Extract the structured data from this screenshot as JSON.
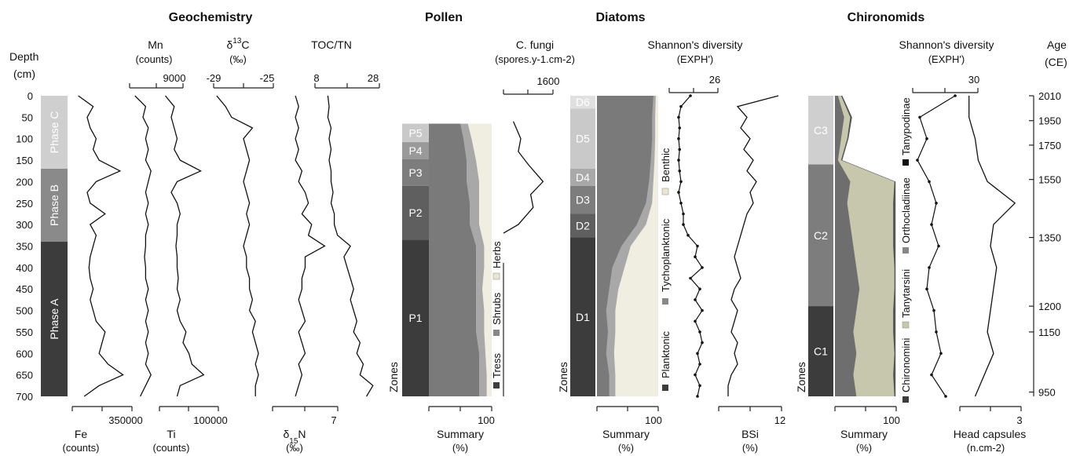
{
  "chart_data": {
    "type": "line",
    "panel_titles": {
      "geochemistry": "Geochemistry",
      "pollen": "Pollen",
      "diatoms": "Diatoms",
      "chironomids": "Chironomids"
    },
    "depth_axis": {
      "label": "Depth",
      "unit": "(cm)",
      "range": [
        0,
        700
      ],
      "ticks": [
        "0",
        "50",
        "100",
        "150",
        "200",
        "250",
        "300",
        "350",
        "400",
        "450",
        "500",
        "550",
        "600",
        "650",
        "700"
      ]
    },
    "age_axis": {
      "label": "Age",
      "unit": "(CE)",
      "ticks": [
        {
          "label": "2010",
          "depth": 0
        },
        {
          "label": "1950",
          "depth": 58
        },
        {
          "label": "1750",
          "depth": 115
        },
        {
          "label": "1550",
          "depth": 195
        },
        {
          "label": "1350",
          "depth": 330
        },
        {
          "label": "1200",
          "depth": 490
        },
        {
          "label": "1150",
          "depth": 550
        },
        {
          "label": "950",
          "depth": 690
        }
      ]
    },
    "phases": [
      {
        "label": "Phase C",
        "top": 0,
        "bottom": 170,
        "color": "#cfcfcf"
      },
      {
        "label": "Phase B",
        "top": 170,
        "bottom": 340,
        "color": "#8a8a8a"
      },
      {
        "label": "Phase A",
        "top": 340,
        "bottom": 700,
        "color": "#3c3c3c"
      }
    ],
    "geo_axes": {
      "mn": {
        "name": "Mn",
        "unit": "(counts)",
        "tick_max": "9000"
      },
      "d13c": {
        "name": "δ13C",
        "name_base": "δ",
        "name_sup": "13",
        "name_tail": "C",
        "unit": "(‰)",
        "tick_min": "-29",
        "tick_max": "-25"
      },
      "tocn": {
        "name": "TOC/TN",
        "tick_min": "8",
        "tick_max": "28"
      },
      "fe": {
        "name": "Fe",
        "unit": "(counts)",
        "tick_max": "350000"
      },
      "ti": {
        "name": "Ti",
        "unit": "(counts)",
        "tick_max": "100000"
      },
      "d15n": {
        "name": "δ15N",
        "name_base": "δ",
        "name_sup": "15",
        "name_tail": "N",
        "unit": "(‰)",
        "tick_max": "7"
      }
    },
    "geochem_depths": [
      0,
      25,
      50,
      75,
      100,
      125,
      150,
      175,
      200,
      225,
      250,
      275,
      300,
      325,
      350,
      375,
      400,
      425,
      450,
      475,
      500,
      525,
      550,
      575,
      600,
      625,
      650,
      675,
      700
    ],
    "fe": [
      0.1,
      0.35,
      0.25,
      0.3,
      0.4,
      0.35,
      0.45,
      0.8,
      0.4,
      0.25,
      0.3,
      0.55,
      0.3,
      0.4,
      0.35,
      0.3,
      0.28,
      0.3,
      0.35,
      0.3,
      0.35,
      0.4,
      0.55,
      0.5,
      0.45,
      0.6,
      0.85,
      0.45,
      0.2
    ],
    "mn": [
      0.1,
      0.3,
      0.25,
      0.35,
      0.3,
      0.35,
      0.3,
      0.4,
      0.35,
      0.3,
      0.35,
      0.3,
      0.35,
      0.3,
      0.3,
      0.28,
      0.3,
      0.3,
      0.35,
      0.3,
      0.35,
      0.3,
      0.35,
      0.3,
      0.35,
      0.3,
      0.4,
      0.3,
      0.2
    ],
    "ti": [
      0.1,
      0.25,
      0.2,
      0.25,
      0.3,
      0.25,
      0.35,
      0.7,
      0.3,
      0.2,
      0.3,
      0.35,
      0.3,
      0.3,
      0.28,
      0.3,
      0.3,
      0.32,
      0.3,
      0.35,
      0.3,
      0.35,
      0.45,
      0.4,
      0.5,
      0.55,
      0.75,
      0.35,
      0.3
    ],
    "d13c": [
      0.05,
      0.2,
      0.3,
      0.65,
      0.5,
      0.55,
      0.6,
      0.55,
      0.5,
      0.55,
      0.6,
      0.55,
      0.6,
      0.55,
      0.5,
      0.55,
      0.55,
      0.6,
      0.6,
      0.65,
      0.6,
      0.7,
      0.65,
      0.7,
      0.75,
      0.7,
      0.75,
      0.7,
      0.7
    ],
    "d15n": [
      0.35,
      0.4,
      0.35,
      0.4,
      0.35,
      0.4,
      0.35,
      0.45,
      0.4,
      0.5,
      0.55,
      0.45,
      0.6,
      0.55,
      0.8,
      0.5,
      0.5,
      0.45,
      0.45,
      0.4,
      0.45,
      0.5,
      0.4,
      0.45,
      0.5,
      0.4,
      0.45,
      0.4,
      0.35
    ],
    "tocn": [
      0.2,
      0.22,
      0.2,
      0.25,
      0.22,
      0.25,
      0.22,
      0.25,
      0.25,
      0.28,
      0.25,
      0.3,
      0.3,
      0.35,
      0.55,
      0.45,
      0.5,
      0.55,
      0.6,
      0.55,
      0.6,
      0.65,
      0.6,
      0.7,
      0.65,
      0.75,
      0.7,
      0.9,
      0.8
    ],
    "pollen": {
      "title": "Pollen",
      "zones": [
        {
          "label": "P5",
          "top": 65,
          "bottom": 108
        },
        {
          "label": "P4",
          "top": 108,
          "bottom": 148
        },
        {
          "label": "P3",
          "top": 148,
          "bottom": 210
        },
        {
          "label": "P2",
          "top": 210,
          "bottom": 335
        },
        {
          "label": "P1",
          "top": 335,
          "bottom": 700
        }
      ],
      "zones_top": 65,
      "summary_label": "Summary",
      "summary_unit": "(%)",
      "summary_max": "100",
      "legend": [
        "Tress",
        "Shrubs",
        "Herbs"
      ],
      "depths": [
        65,
        100,
        150,
        200,
        250,
        300,
        350,
        400,
        450,
        500,
        550,
        600,
        650,
        700
      ],
      "trees": [
        0.5,
        0.55,
        0.6,
        0.6,
        0.65,
        0.65,
        0.75,
        0.75,
        0.75,
        0.75,
        0.75,
        0.8,
        0.8,
        0.8
      ],
      "shrubs": [
        0.62,
        0.68,
        0.75,
        0.8,
        0.8,
        0.8,
        0.88,
        0.88,
        0.85,
        0.88,
        0.88,
        0.9,
        0.92,
        0.92
      ],
      "fungi_label": "C. fungi",
      "fungi_unit": "(spores.y-1.cm-2)",
      "fungi_tick": "1600",
      "fungi_depths": [
        60,
        100,
        130,
        160,
        200,
        230,
        260,
        300,
        320
      ],
      "fungi": [
        0.2,
        0.35,
        0.3,
        0.5,
        0.8,
        0.55,
        0.6,
        0.3,
        0.0
      ]
    },
    "diatoms": {
      "title": "Diatoms",
      "zones": [
        {
          "label": "D6",
          "top": 0,
          "bottom": 30
        },
        {
          "label": "D5",
          "top": 30,
          "bottom": 170
        },
        {
          "label": "D4",
          "top": 170,
          "bottom": 210
        },
        {
          "label": "D3",
          "top": 210,
          "bottom": 275
        },
        {
          "label": "D2",
          "top": 275,
          "bottom": 330
        },
        {
          "label": "D1",
          "top": 330,
          "bottom": 700
        }
      ],
      "summary_label": "Summary",
      "summary_unit": "(%)",
      "summary_max": "100",
      "legend": [
        "Planktonic",
        "Tychoplanktonic",
        "Benthic"
      ],
      "depths": [
        0,
        50,
        100,
        150,
        200,
        250,
        300,
        350,
        400,
        450,
        500,
        550,
        600,
        650,
        700
      ],
      "planktonic": [
        0.92,
        0.9,
        0.9,
        0.88,
        0.85,
        0.8,
        0.65,
        0.4,
        0.25,
        0.2,
        0.15,
        0.18,
        0.15,
        0.2,
        0.2
      ],
      "tycho": [
        0.96,
        0.95,
        0.95,
        0.94,
        0.92,
        0.9,
        0.8,
        0.55,
        0.45,
        0.35,
        0.3,
        0.3,
        0.28,
        0.3,
        0.3
      ],
      "shannon_label": "Shannon's diversity",
      "shannon_unit": "(EXPH')",
      "shannon_tick": "26",
      "shannon_depths": [
        0,
        25,
        50,
        75,
        100,
        125,
        150,
        175,
        200,
        225,
        250,
        275,
        300,
        325,
        350,
        375,
        400,
        425,
        450,
        475,
        500,
        525,
        550,
        575,
        600,
        625,
        650,
        675,
        700
      ],
      "shannon": [
        0.35,
        0.15,
        0.1,
        0.12,
        0.1,
        0.12,
        0.1,
        0.12,
        0.15,
        0.1,
        0.15,
        0.2,
        0.2,
        0.3,
        0.5,
        0.45,
        0.6,
        0.35,
        0.55,
        0.45,
        0.6,
        0.45,
        0.55,
        0.6,
        0.5,
        0.55,
        0.45,
        0.55,
        0.5
      ],
      "bsi_label": "BSi",
      "bsi_unit": "(%)",
      "bsi_tick": "12",
      "bsi_depths": [
        0,
        25,
        50,
        75,
        100,
        125,
        150,
        175,
        200,
        225,
        250,
        275,
        300,
        325,
        350,
        375,
        400,
        425,
        450,
        475,
        500,
        525,
        550,
        575,
        600,
        625,
        650,
        675,
        700
      ],
      "bsi": [
        0.95,
        0.3,
        0.45,
        0.35,
        0.5,
        0.4,
        0.55,
        0.45,
        0.6,
        0.5,
        0.55,
        0.45,
        0.4,
        0.35,
        0.3,
        0.25,
        0.3,
        0.35,
        0.25,
        0.2,
        0.3,
        0.25,
        0.2,
        0.3,
        0.25,
        0.3,
        0.2,
        0.15,
        0.15
      ]
    },
    "chironomids": {
      "title": "Chironomids",
      "zones": [
        {
          "label": "C3",
          "top": 0,
          "bottom": 160
        },
        {
          "label": "C2",
          "top": 160,
          "bottom": 490
        },
        {
          "label": "C1",
          "top": 490,
          "bottom": 700
        }
      ],
      "summary_label": "Summary",
      "summary_unit": "(%)",
      "summary_max": "100",
      "legend": [
        "Chironomini",
        "Tanytarsini",
        "Orthocladiinae",
        "Tanypodinae"
      ],
      "depths": [
        0,
        50,
        100,
        150,
        200,
        250,
        300,
        350,
        400,
        450,
        500,
        550,
        600,
        650,
        700
      ],
      "chiro": [
        0.05,
        0.15,
        0.1,
        0.05,
        0.25,
        0.2,
        0.25,
        0.3,
        0.35,
        0.4,
        0.35,
        0.3,
        0.35,
        0.3,
        0.35
      ],
      "tany": [
        0.1,
        0.25,
        0.2,
        0.1,
        0.97,
        0.95,
        0.95,
        0.95,
        0.97,
        0.97,
        0.95,
        0.95,
        0.97,
        0.95,
        0.97
      ],
      "ortho": [
        0.12,
        0.28,
        0.22,
        0.12,
        0.99,
        0.99,
        0.99,
        0.99,
        0.99,
        0.99,
        0.99,
        0.99,
        0.99,
        0.99,
        0.99
      ],
      "shannon_label": "Shannon's diversity",
      "shannon_unit": "(EXPH')",
      "shannon_tick": "30",
      "shannon_depths": [
        0,
        50,
        100,
        150,
        200,
        250,
        300,
        350,
        400,
        450,
        500,
        550,
        600,
        650,
        700
      ],
      "shannon": [
        0.9,
        0.15,
        0.3,
        0.1,
        0.35,
        0.5,
        0.4,
        0.55,
        0.35,
        0.3,
        0.45,
        0.5,
        0.6,
        0.4,
        0.7
      ],
      "head_label": "Head capsules",
      "head_unit": "(n.cm-2)",
      "head_tick": "3",
      "head_depths": [
        0,
        50,
        100,
        150,
        200,
        250,
        300,
        350,
        400,
        450,
        500,
        550,
        600,
        650,
        700
      ],
      "head": [
        0.15,
        0.15,
        0.25,
        0.3,
        0.45,
        0.9,
        0.55,
        0.5,
        0.6,
        0.55,
        0.5,
        0.45,
        0.55,
        0.4,
        0.25
      ],
      "zones_label": "Zones"
    }
  }
}
